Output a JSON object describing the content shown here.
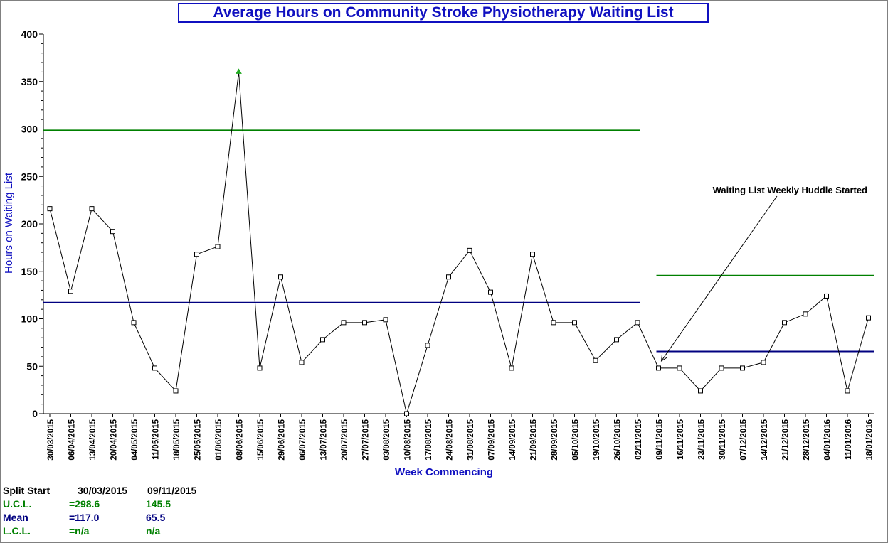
{
  "chart_data": {
    "type": "line",
    "title": "Average Hours on Community Stroke Physiotherapy Waiting List",
    "xlabel": "Week Commencing",
    "ylabel": "Hours on Waiting List",
    "ylim": [
      0,
      400
    ],
    "yticks": [
      0,
      50,
      100,
      150,
      200,
      250,
      300,
      350,
      400
    ],
    "grid": false,
    "categories": [
      "30/03/2015",
      "06/04/2015",
      "13/04/2015",
      "20/04/2015",
      "04/05/2015",
      "11/05/2015",
      "18/05/2015",
      "25/05/2015",
      "01/06/2015",
      "08/06/2015",
      "15/06/2015",
      "29/06/2015",
      "06/07/2015",
      "13/07/2015",
      "20/07/2015",
      "27/07/2015",
      "03/08/2015",
      "10/08/2015",
      "17/08/2015",
      "24/08/2015",
      "31/08/2015",
      "07/09/2015",
      "14/09/2015",
      "21/09/2015",
      "28/09/2015",
      "05/10/2015",
      "19/10/2015",
      "26/10/2015",
      "02/11/2015",
      "09/11/2015",
      "16/11/2015",
      "23/11/2015",
      "30/11/2015",
      "07/12/2015",
      "14/12/2015",
      "21/12/2015",
      "28/12/2015",
      "04/01/2016",
      "11/01/2016",
      "18/01/2016"
    ],
    "values": [
      216,
      129,
      216,
      192,
      96,
      48,
      24,
      168,
      176,
      360,
      48,
      144,
      54,
      78,
      96,
      96,
      99,
      0,
      72,
      144,
      172,
      128,
      48,
      168,
      96,
      96,
      56,
      78,
      96,
      48,
      48,
      24,
      48,
      48,
      54,
      96,
      105,
      124,
      24,
      101
    ],
    "highlight_point": {
      "index": 9,
      "color": "#22aa22"
    },
    "line_color": "#000000",
    "limits": [
      {
        "start_index": 0,
        "end_index": 28,
        "ucl": 298.6,
        "mean": 117.0
      },
      {
        "start_index": 29,
        "end_index": 39,
        "ucl": 145.5,
        "mean": 65.5
      }
    ],
    "ucl_color": "#008000",
    "mean_color": "#000080",
    "annotation": {
      "text": "Waiting List Weekly Huddle Started",
      "point_index": 29
    }
  },
  "stats": {
    "header": {
      "label": "Split Start",
      "p1": "30/03/2015",
      "p2": "09/11/2015"
    },
    "ucl": {
      "label": "U.C.L.",
      "p1": "=298.6",
      "p2": "145.5"
    },
    "mean": {
      "label": "Mean",
      "p1": "=117.0",
      "p2": "65.5"
    },
    "lcl": {
      "label": "L.C.L.",
      "p1": "=n/a",
      "p2": "n/a"
    }
  }
}
